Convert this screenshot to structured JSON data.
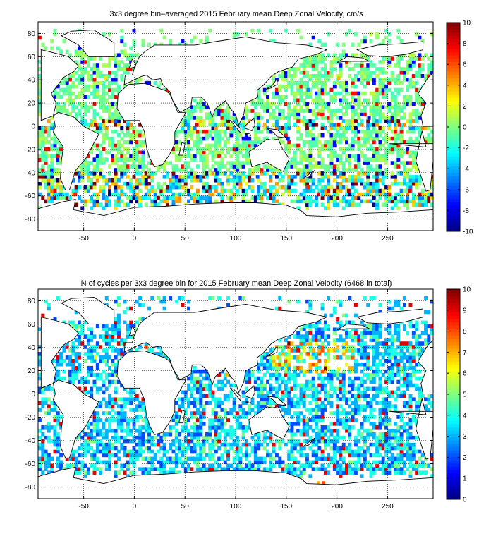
{
  "chart_data": [
    {
      "type": "heatmap",
      "title": "3x3 degree bin–averaged 2015 February mean Deep Zonal Velocity, cm/s",
      "xlabel": "",
      "ylabel": "",
      "xlim": [
        -95,
        295
      ],
      "ylim": [
        -90,
        90
      ],
      "xticks": [
        -50,
        0,
        50,
        100,
        150,
        200,
        250
      ],
      "yticks": [
        -80,
        -60,
        -40,
        -20,
        0,
        20,
        40,
        60,
        80
      ],
      "grid": true,
      "grid_style": "dotted",
      "colormap": "jet",
      "clim": [
        -10,
        10
      ],
      "colorbar_ticks": [
        -10,
        -8,
        -6,
        -4,
        -2,
        0,
        2,
        4,
        6,
        8,
        10
      ],
      "colorbar_position": "right",
      "bin_size_deg": 3,
      "bins": [
        {
          "lon": 180,
          "lat": -60,
          "v": 8
        },
        {
          "lon": 190,
          "lat": -57,
          "v": 8
        },
        {
          "lon": 170,
          "lat": -54,
          "v": 7
        },
        {
          "lon": 210,
          "lat": -57,
          "v": 9
        },
        {
          "lon": 130,
          "lat": -57,
          "v": 6
        },
        {
          "lon": 250,
          "lat": -60,
          "v": 7
        },
        {
          "lon": 270,
          "lat": -57,
          "v": 8
        },
        {
          "lon": 280,
          "lat": -60,
          "v": 9
        },
        {
          "lon": -80,
          "lat": -57,
          "v": 8
        },
        {
          "lon": -60,
          "lat": -60,
          "v": 7
        },
        {
          "lon": 10,
          "lat": -48,
          "v": -9
        },
        {
          "lon": 40,
          "lat": -45,
          "v": -8
        },
        {
          "lon": 80,
          "lat": -42,
          "v": -7
        },
        {
          "lon": 120,
          "lat": -45,
          "v": -6
        },
        {
          "lon": 150,
          "lat": -12,
          "v": -7
        },
        {
          "lon": 160,
          "lat": 3,
          "v": 7
        },
        {
          "lon": 180,
          "lat": 9,
          "v": 6
        },
        {
          "lon": 200,
          "lat": 0,
          "v": 8
        },
        {
          "lon": 230,
          "lat": 6,
          "v": -8
        },
        {
          "lon": 260,
          "lat": 0,
          "v": 7
        },
        {
          "lon": 60,
          "lat": 0,
          "v": 8
        },
        {
          "lon": -40,
          "lat": 0,
          "v": 9
        },
        {
          "lon": -20,
          "lat": 3,
          "v": -6
        },
        {
          "lon": -30,
          "lat": 40,
          "v": 3
        },
        {
          "lon": 170,
          "lat": 30,
          "v": -5
        },
        {
          "lon": 200,
          "lat": 40,
          "v": 4
        }
      ]
    },
    {
      "type": "heatmap",
      "title": "N of cycles per 3x3 degree bin for 2015 February mean Deep Zonal Velocity (6468 in total)",
      "xlabel": "",
      "ylabel": "",
      "xlim": [
        -95,
        295
      ],
      "ylim": [
        -90,
        90
      ],
      "xticks": [
        -50,
        0,
        50,
        100,
        150,
        200,
        250
      ],
      "yticks": [
        -80,
        -60,
        -40,
        -20,
        0,
        20,
        40,
        60,
        80
      ],
      "grid": true,
      "grid_style": "dotted",
      "colormap": "jet",
      "clim": [
        0,
        10
      ],
      "colorbar_ticks": [
        0,
        1,
        2,
        3,
        4,
        5,
        6,
        7,
        8,
        9,
        10
      ],
      "colorbar_position": "right",
      "bin_size_deg": 3,
      "bins": [
        {
          "lon": 160,
          "lat": 36,
          "v": 9
        },
        {
          "lon": 150,
          "lat": 39,
          "v": 8
        },
        {
          "lon": 170,
          "lat": 33,
          "v": 8
        },
        {
          "lon": 140,
          "lat": 30,
          "v": 7
        },
        {
          "lon": 10,
          "lat": 39,
          "v": 8
        },
        {
          "lon": 0,
          "lat": 42,
          "v": 6
        },
        {
          "lon": 180,
          "lat": -78,
          "v": 7
        },
        {
          "lon": 185,
          "lat": -78,
          "v": 8
        },
        {
          "lon": 90,
          "lat": 15,
          "v": 7
        },
        {
          "lon": -40,
          "lat": 30,
          "v": 6
        },
        {
          "lon": -30,
          "lat": 27,
          "v": 5
        },
        {
          "lon": 200,
          "lat": 20,
          "v": 6
        }
      ]
    }
  ]
}
